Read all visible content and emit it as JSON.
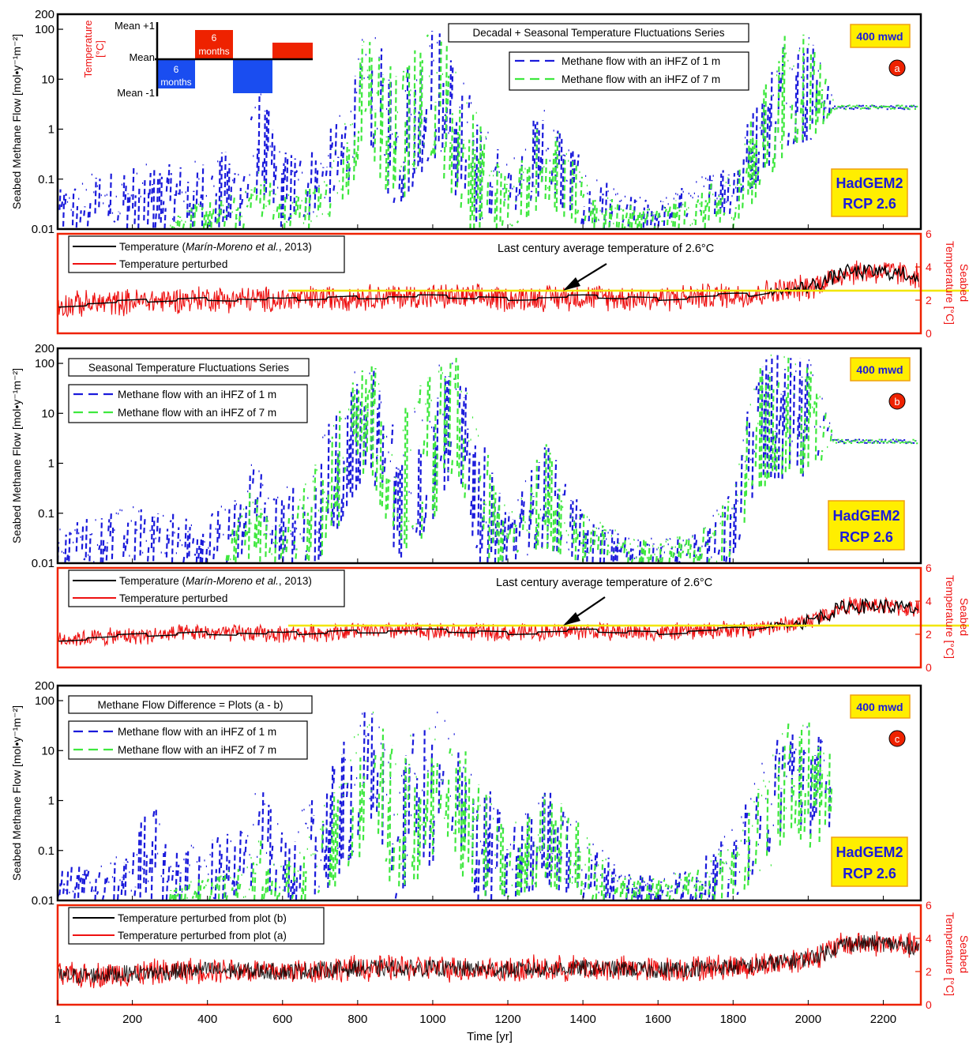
{
  "figure": {
    "x_axis_label": "Time [yr]",
    "x_ticks": [
      1,
      200,
      400,
      600,
      800,
      1000,
      1200,
      1400,
      1600,
      1800,
      2000,
      2200
    ],
    "x_range": [
      1,
      2300
    ],
    "flow_axis_label": "Seabed Methane Flow [mol•y⁻¹m⁻²]",
    "flow_ticks": [
      "200",
      "100",
      "10",
      "1",
      "0.1",
      "0.01"
    ],
    "temp_axis_label_line1": "Seabed",
    "temp_axis_label_line2": "Temperature [°C]",
    "temp_ticks": [
      "6",
      "4",
      "2",
      "0"
    ],
    "colors": {
      "methane_1m": "#1a1adb",
      "methane_7m": "#3ee83e",
      "temperature": "#000000",
      "temperature_perturbed": "#ee1111",
      "average_line": "#f2e600",
      "badge_fill": "#ffee00",
      "badge_border": "#f0a010",
      "badge_text": "#1a1adb",
      "panel_letter_fill": "#ee2200",
      "temp_frame": "#ee2200"
    }
  },
  "inset": {
    "title_line1": "Temperature",
    "title_line2": "[°C]",
    "mean_plus": "Mean +1",
    "mean": "Mean",
    "mean_minus": "Mean -1",
    "six_months": "6",
    "months": "months"
  },
  "panels": [
    {
      "letter": "a",
      "title": "Decadal + Seasonal Temperature Fluctuations Series",
      "legend_1m": "Methane flow with an iHFZ of 1 m",
      "legend_7m": "Methane flow with an iHFZ of 7 m",
      "badge": "400 mwd",
      "model_line1": "HadGEM2",
      "model_line2": "RCP 2.6",
      "temp_legend_black": "Temperature (Marín-Moreno et al., 2013)",
      "temp_legend_black_pre": "Temperature (",
      "temp_legend_black_italic": "Marín-Moreno et al.",
      "temp_legend_black_post": ", 2013)",
      "temp_legend_red": "Temperature perturbed",
      "annotation": "Last century average temperature of 2.6°C"
    },
    {
      "letter": "b",
      "title": "Seasonal Temperature Fluctuations Series",
      "legend_1m": "Methane flow with an iHFZ of 1 m",
      "legend_7m": "Methane flow with an iHFZ of 7 m",
      "badge": "400 mwd",
      "model_line1": "HadGEM2",
      "model_line2": "RCP 2.6",
      "temp_legend_black_pre": "Temperature (",
      "temp_legend_black_italic": "Marín-Moreno et al.",
      "temp_legend_black_post": ", 2013)",
      "temp_legend_red": "Temperature perturbed",
      "annotation": "Last century average temperature of 2.6°C"
    },
    {
      "letter": "c",
      "title": "Methane Flow Difference = Plots (a - b)",
      "legend_1m": "Methane flow with an iHFZ of 1 m",
      "legend_7m": "Methane flow with an iHFZ of 7 m",
      "badge": "400 mwd",
      "model_line1": "HadGEM2",
      "model_line2": "RCP 2.6",
      "temp_legend_black": "Temperature perturbed from plot (b)",
      "temp_legend_red": "Temperature perturbed from plot (a)"
    }
  ],
  "chart_data": [
    {
      "type": "line",
      "panel": "a",
      "ylabel": "Seabed Methane Flow [mol•y⁻¹m⁻²]",
      "yscale": "log",
      "ylim": [
        0.01,
        200
      ],
      "xlim": [
        1,
        2300
      ],
      "series": [
        {
          "name": "Methane flow with an iHFZ of 1 m",
          "x": [
            1,
            100,
            200,
            300,
            400,
            500,
            530,
            600,
            700,
            780,
            820,
            900,
            1000,
            1050,
            1100,
            1200,
            1300,
            1400,
            1500,
            1600,
            1700,
            1800,
            1900,
            1950,
            2000,
            2070,
            2100,
            2200,
            2290
          ],
          "envelope_low": [
            0.01,
            0.01,
            0.01,
            0.01,
            0.01,
            0.01,
            0.05,
            0.01,
            0.02,
            0.1,
            1,
            0.02,
            0.3,
            0.05,
            0.01,
            0.02,
            0.05,
            0.01,
            0.01,
            0.01,
            0.02,
            0.02,
            0.2,
            0.5,
            0.5,
            2.5,
            2.5,
            2.5,
            2.5
          ],
          "envelope_high": [
            0.06,
            0.15,
            0.2,
            0.2,
            0.3,
            0.5,
            10,
            0.4,
            0.5,
            5,
            150,
            15,
            150,
            50,
            5,
            0.2,
            5,
            0.2,
            0.05,
            0.04,
            0.1,
            0.3,
            30,
            150,
            150,
            3,
            3,
            3,
            3
          ]
        },
        {
          "name": "Methane flow with an iHFZ of 7 m",
          "x": [
            300,
            400,
            500,
            530,
            600,
            700,
            780,
            820,
            900,
            1000,
            1050,
            1100,
            1200,
            1300,
            1400,
            1500,
            1600,
            1700,
            1800,
            1900,
            1950,
            2000,
            2070,
            2100,
            2200,
            2290
          ],
          "envelope_low": [
            0.01,
            0.01,
            0.01,
            0.02,
            0.01,
            0.01,
            0.05,
            0.5,
            0.02,
            0.3,
            0.05,
            0.01,
            0.01,
            0.03,
            0.01,
            0.01,
            0.01,
            0.01,
            0.01,
            0.1,
            0.5,
            0.5,
            2.5,
            2.5,
            2.5,
            2.5
          ],
          "envelope_high": [
            0.02,
            0.04,
            0.06,
            0.2,
            0.05,
            0.1,
            3,
            150,
            15,
            150,
            50,
            5,
            0.1,
            3,
            0.1,
            0.03,
            0.03,
            0.05,
            0.2,
            20,
            150,
            150,
            3,
            3,
            3,
            3
          ]
        }
      ]
    },
    {
      "type": "line",
      "panel": "a-temperature",
      "ylabel": "Seabed Temperature [°C]",
      "ylim": [
        0,
        6
      ],
      "xlim": [
        1,
        2300
      ],
      "series": [
        {
          "name": "Temperature (Marín-Moreno et al., 2013)",
          "x": [
            1,
            200,
            400,
            600,
            800,
            1000,
            1200,
            1400,
            1600,
            1800,
            1850,
            1900,
            1950,
            2000,
            2050,
            2100,
            2200,
            2290
          ],
          "y": [
            1.7,
            1.9,
            2.1,
            2.0,
            2.2,
            2.2,
            2.1,
            2.2,
            2.1,
            2.3,
            2.3,
            2.5,
            2.6,
            2.8,
            3.2,
            3.7,
            3.7,
            3.5
          ]
        },
        {
          "name": "Temperature perturbed",
          "amplitude": 0.9
        },
        {
          "name": "Last century average temperature of 2.6°C",
          "x": [
            365,
            1855
          ],
          "y": [
            2.6,
            2.6
          ]
        }
      ]
    },
    {
      "type": "line",
      "panel": "b",
      "ylabel": "Seabed Methane Flow [mol•y⁻¹m⁻²]",
      "yscale": "log",
      "ylim": [
        0.01,
        200
      ],
      "xlim": [
        1,
        2300
      ],
      "series": [
        {
          "name": "Methane flow with an iHFZ of 1 m",
          "x": [
            1,
            100,
            200,
            300,
            400,
            500,
            520,
            560,
            600,
            700,
            800,
            830,
            900,
            1000,
            1060,
            1120,
            1200,
            1300,
            1400,
            1500,
            1600,
            1700,
            1800,
            1860,
            1950,
            2000,
            2070,
            2100,
            2200,
            2290
          ],
          "envelope_low": [
            0.01,
            0.01,
            0.01,
            0.01,
            0.01,
            0.01,
            0.1,
            0.02,
            0.01,
            0.01,
            0.3,
            1,
            0.01,
            0.05,
            1,
            0.01,
            0.01,
            0.02,
            0.01,
            0.01,
            0.01,
            0.01,
            0.01,
            0.3,
            0.5,
            0.5,
            2.5,
            2.5,
            2.5,
            2.5
          ],
          "envelope_high": [
            0.05,
            0.1,
            0.15,
            0.1,
            0.1,
            0.3,
            5,
            0.3,
            0.3,
            3,
            100,
            150,
            10,
            100,
            150,
            5,
            0.1,
            3,
            0.1,
            0.04,
            0.03,
            0.04,
            0.3,
            150,
            150,
            150,
            3,
            3,
            3,
            3
          ]
        },
        {
          "name": "Methane flow with an iHFZ of 7 m",
          "x": [
            450,
            520,
            560,
            600,
            700,
            800,
            830,
            900,
            1000,
            1060,
            1120,
            1200,
            1300,
            1400,
            1500,
            1600,
            1700,
            1800,
            1860,
            1950,
            2000,
            2070,
            2100,
            2200,
            2290
          ],
          "envelope_low": [
            0.01,
            0.01,
            0.01,
            0.01,
            0.01,
            0.3,
            1,
            0.01,
            0.05,
            1,
            0.01,
            0.01,
            0.02,
            0.01,
            0.01,
            0.01,
            0.01,
            0.01,
            0.3,
            0.5,
            0.5,
            2.5,
            2.5,
            2.5,
            2.5
          ],
          "envelope_high": [
            0.03,
            0.5,
            0.1,
            0.05,
            2,
            100,
            150,
            10,
            100,
            150,
            5,
            0.1,
            3,
            0.1,
            0.04,
            0.03,
            0.04,
            0.3,
            150,
            150,
            150,
            3,
            3,
            3,
            3
          ]
        }
      ]
    },
    {
      "type": "line",
      "panel": "b-temperature",
      "ylabel": "Seabed Temperature [°C]",
      "ylim": [
        0,
        6
      ],
      "xlim": [
        1,
        2300
      ],
      "series": [
        {
          "name": "Temperature (Marín-Moreno et al., 2013)",
          "x": [
            1,
            200,
            400,
            600,
            800,
            1000,
            1200,
            1400,
            1600,
            1800,
            1850,
            1900,
            1950,
            2000,
            2050,
            2100,
            2200,
            2290
          ],
          "y": [
            1.7,
            1.9,
            2.1,
            2.0,
            2.2,
            2.2,
            2.1,
            2.2,
            2.1,
            2.3,
            2.3,
            2.5,
            2.6,
            2.8,
            3.2,
            3.7,
            3.7,
            3.5
          ]
        },
        {
          "name": "Temperature perturbed",
          "amplitude": 0.6
        },
        {
          "name": "Last century average temperature of 2.6°C",
          "x": [
            365,
            1855
          ],
          "y": [
            2.6,
            2.6
          ]
        }
      ]
    },
    {
      "type": "line",
      "panel": "c",
      "ylabel": "Seabed Methane Flow [mol•y⁻¹m⁻²]",
      "yscale": "log",
      "ylim": [
        0.01,
        200
      ],
      "xlim": [
        1,
        2300
      ],
      "series": [
        {
          "name": "Methane flow with an iHFZ of 1 m",
          "x": [
            1,
            100,
            200,
            240,
            300,
            400,
            500,
            530,
            600,
            700,
            800,
            830,
            900,
            1000,
            1020,
            1100,
            1200,
            1300,
            1400,
            1500,
            1600,
            1700,
            1800,
            1900,
            1950,
            2000,
            2060
          ],
          "envelope_low": [
            0.01,
            0.01,
            0.01,
            0.01,
            0.01,
            0.01,
            0.01,
            0.02,
            0.01,
            0.01,
            0.1,
            0.5,
            0.01,
            0.05,
            0.5,
            0.01,
            0.01,
            0.02,
            0.01,
            0.01,
            0.01,
            0.01,
            0.01,
            0.1,
            0.5,
            0.2,
            0.3
          ],
          "envelope_high": [
            0.05,
            0.05,
            0.1,
            2,
            0.1,
            0.2,
            0.3,
            3,
            0.2,
            2,
            60,
            100,
            10,
            60,
            60,
            10,
            0.3,
            2,
            0.3,
            0.05,
            0.03,
            0.05,
            0.3,
            15,
            60,
            60,
            10
          ]
        },
        {
          "name": "Methane flow with an iHFZ of 7 m",
          "x": [
            300,
            400,
            500,
            530,
            600,
            700,
            800,
            830,
            900,
            1000,
            1020,
            1100,
            1200,
            1300,
            1400,
            1500,
            1600,
            1700,
            1800,
            1900,
            1950,
            2000,
            2060
          ],
          "envelope_low": [
            0.01,
            0.01,
            0.01,
            0.01,
            0.01,
            0.01,
            0.05,
            0.5,
            0.01,
            0.05,
            0.5,
            0.01,
            0.01,
            0.02,
            0.01,
            0.01,
            0.01,
            0.01,
            0.01,
            0.05,
            0.3,
            0.1,
            0.2
          ],
          "envelope_high": [
            0.02,
            0.03,
            0.05,
            0.2,
            0.05,
            0.5,
            50,
            100,
            10,
            60,
            60,
            10,
            0.3,
            2,
            0.3,
            0.03,
            0.03,
            0.04,
            0.2,
            10,
            60,
            60,
            10
          ]
        }
      ]
    },
    {
      "type": "line",
      "panel": "c-temperature",
      "ylabel": "Seabed Temperature [°C]",
      "ylim": [
        0,
        6
      ],
      "xlim": [
        1,
        2300
      ],
      "series": [
        {
          "name": "Temperature perturbed from plot (b)",
          "amplitude": 0.6,
          "x": [
            1,
            200,
            400,
            600,
            800,
            1000,
            1200,
            1400,
            1600,
            1800,
            1850,
            1900,
            1950,
            2000,
            2050,
            2100,
            2200,
            2290
          ],
          "y": [
            1.7,
            1.9,
            2.1,
            2.0,
            2.2,
            2.2,
            2.1,
            2.2,
            2.1,
            2.3,
            2.3,
            2.5,
            2.6,
            2.8,
            3.2,
            3.7,
            3.7,
            3.5
          ]
        },
        {
          "name": "Temperature perturbed from plot (a)",
          "amplitude": 0.9
        }
      ]
    }
  ]
}
